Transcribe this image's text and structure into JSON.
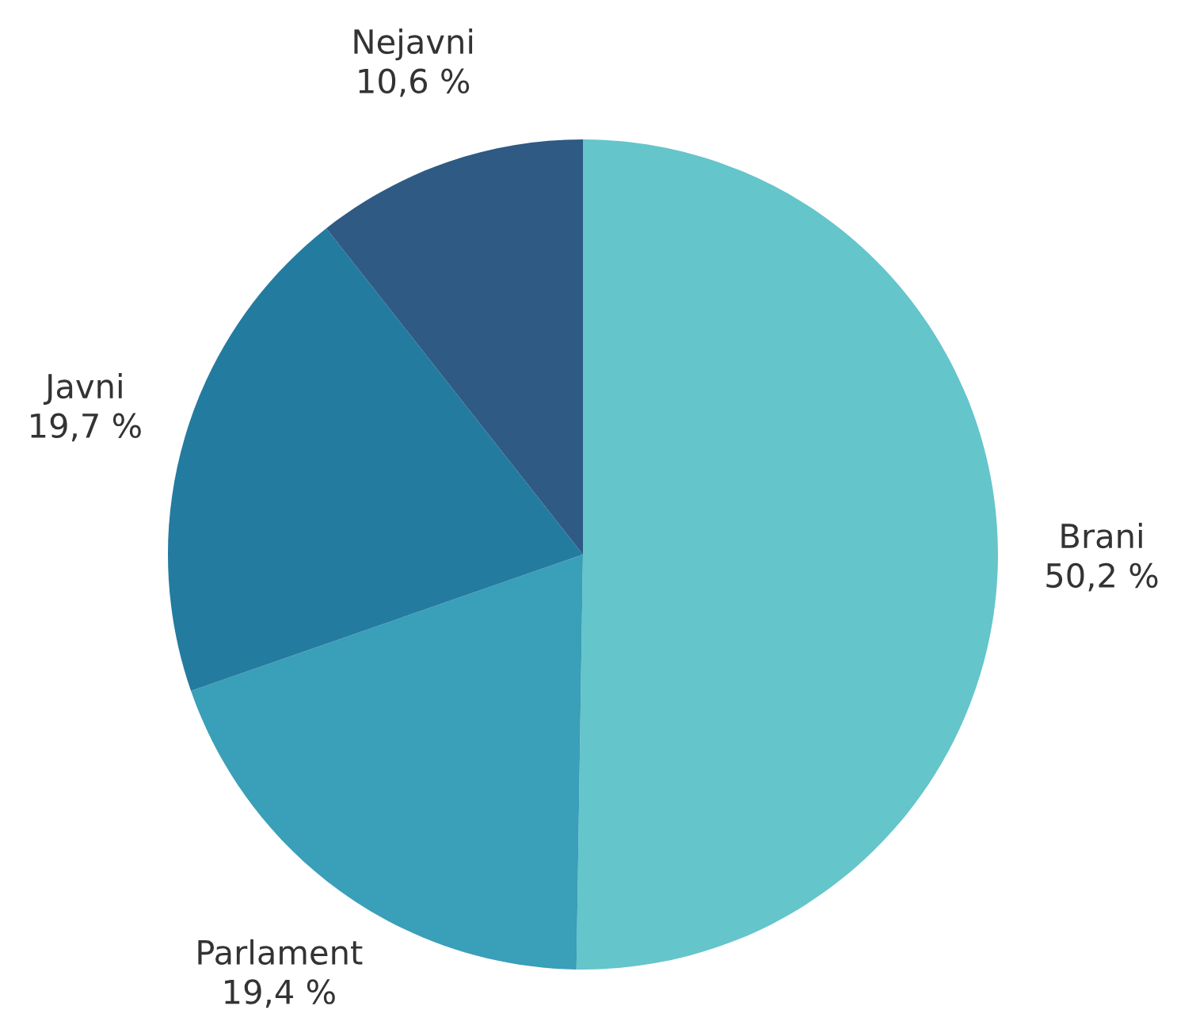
{
  "chart_data": {
    "type": "pie",
    "categories": [
      "Brani",
      "Parlament",
      "Javni",
      "Nejavni"
    ],
    "values": [
      50.2,
      19.4,
      19.7,
      10.6
    ],
    "colors": [
      "#64c5cb",
      "#3a9fb8",
      "#247ba0",
      "#2e5a84"
    ],
    "value_labels": [
      "50,2 %",
      "19,4 %",
      "19,7 %",
      "10,6 %"
    ],
    "legend": false
  }
}
